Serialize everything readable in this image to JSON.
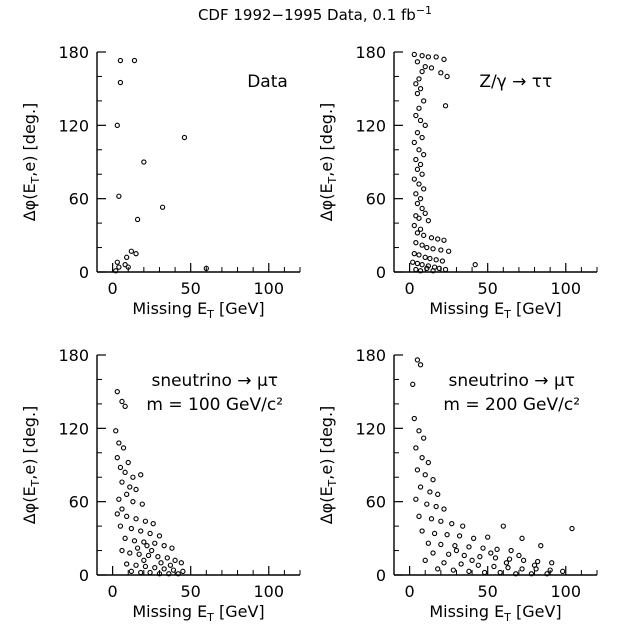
{
  "figure": {
    "title": "CDF 1992−1995 Data, 0.1 fb",
    "title_superscript": "−1"
  },
  "chart_data": [
    {
      "type": "scatter",
      "annotation": [
        "Data"
      ],
      "xlabel": "Missing E",
      "xlabel_sub": "T",
      "xlabel_unit": " [GeV]",
      "ylabel": "Δφ(E",
      "ylabel_sub": "T",
      "ylabel_end": ",e) [deg.]",
      "xlim": [
        -10,
        120
      ],
      "ylim": [
        0,
        180
      ],
      "xticks": [
        0,
        50,
        100
      ],
      "yticks": [
        0,
        60,
        120,
        180
      ],
      "marker_color": "#000000",
      "points": [
        [
          5,
          173
        ],
        [
          14,
          173
        ],
        [
          5,
          155
        ],
        [
          3,
          120
        ],
        [
          46,
          110
        ],
        [
          20,
          90
        ],
        [
          4,
          62
        ],
        [
          32,
          53
        ],
        [
          16,
          43
        ],
        [
          12,
          17
        ],
        [
          15,
          15
        ],
        [
          9,
          12
        ],
        [
          3,
          8
        ],
        [
          4,
          4
        ],
        [
          8,
          6
        ],
        [
          10,
          4
        ],
        [
          2,
          1
        ],
        [
          60,
          3
        ]
      ]
    },
    {
      "type": "scatter",
      "annotation": [
        "Z/γ → ττ"
      ],
      "xlabel": "Missing E",
      "xlabel_sub": "T",
      "xlabel_unit": " [GeV]",
      "ylabel": "Δφ(E",
      "ylabel_sub": "T",
      "ylabel_end": ",e) [deg.]",
      "xlim": [
        -10,
        120
      ],
      "ylim": [
        0,
        180
      ],
      "xticks": [
        0,
        50,
        100
      ],
      "yticks": [
        0,
        60,
        120,
        180
      ],
      "marker_color": "#000000",
      "points": [
        [
          3,
          178
        ],
        [
          8,
          177
        ],
        [
          12,
          176
        ],
        [
          17,
          176
        ],
        [
          22,
          174
        ],
        [
          5,
          172
        ],
        [
          10,
          168
        ],
        [
          14,
          167
        ],
        [
          20,
          163
        ],
        [
          24,
          160
        ],
        [
          8,
          164
        ],
        [
          6,
          158
        ],
        [
          4,
          154
        ],
        [
          7,
          150
        ],
        [
          5,
          146
        ],
        [
          9,
          140
        ],
        [
          23,
          136
        ],
        [
          6,
          134
        ],
        [
          4,
          128
        ],
        [
          7,
          124
        ],
        [
          10,
          120
        ],
        [
          5,
          114
        ],
        [
          8,
          110
        ],
        [
          3,
          106
        ],
        [
          6,
          100
        ],
        [
          9,
          96
        ],
        [
          4,
          92
        ],
        [
          7,
          88
        ],
        [
          5,
          84
        ],
        [
          8,
          80
        ],
        [
          3,
          76
        ],
        [
          6,
          72
        ],
        [
          9,
          68
        ],
        [
          4,
          64
        ],
        [
          7,
          60
        ],
        [
          5,
          56
        ],
        [
          8,
          52
        ],
        [
          10,
          48
        ],
        [
          4,
          46
        ],
        [
          6,
          44
        ],
        [
          12,
          42
        ],
        [
          3,
          38
        ],
        [
          7,
          35
        ],
        [
          5,
          32
        ],
        [
          9,
          30
        ],
        [
          14,
          28
        ],
        [
          18,
          27
        ],
        [
          22,
          26
        ],
        [
          4,
          24
        ],
        [
          8,
          22
        ],
        [
          11,
          20
        ],
        [
          15,
          19
        ],
        [
          20,
          18
        ],
        [
          25,
          17
        ],
        [
          3,
          15
        ],
        [
          6,
          14
        ],
        [
          10,
          12
        ],
        [
          13,
          11
        ],
        [
          17,
          10
        ],
        [
          21,
          9
        ],
        [
          2,
          8
        ],
        [
          5,
          7
        ],
        [
          8,
          6
        ],
        [
          12,
          5
        ],
        [
          16,
          4
        ],
        [
          19,
          3
        ],
        [
          23,
          2
        ],
        [
          4,
          2
        ],
        [
          7,
          1
        ],
        [
          11,
          3
        ],
        [
          15,
          1
        ],
        [
          42,
          6
        ]
      ]
    },
    {
      "type": "scatter",
      "annotation": [
        "sneutrino → μτ",
        "m = 100 GeV/c²"
      ],
      "xlabel": "Missing E",
      "xlabel_sub": "T",
      "xlabel_unit": " [GeV]",
      "ylabel": "Δφ(E",
      "ylabel_sub": "T",
      "ylabel_end": ",e) [deg.]",
      "xlim": [
        -10,
        120
      ],
      "ylim": [
        0,
        180
      ],
      "xticks": [
        0,
        50,
        100
      ],
      "yticks": [
        0,
        60,
        120,
        180
      ],
      "marker_color": "#000000",
      "points": [
        [
          3,
          150
        ],
        [
          6,
          142
        ],
        [
          8,
          138
        ],
        [
          2,
          118
        ],
        [
          4,
          108
        ],
        [
          7,
          104
        ],
        [
          3,
          96
        ],
        [
          10,
          92
        ],
        [
          5,
          88
        ],
        [
          8,
          84
        ],
        [
          13,
          80
        ],
        [
          18,
          82
        ],
        [
          6,
          76
        ],
        [
          11,
          72
        ],
        [
          15,
          70
        ],
        [
          9,
          66
        ],
        [
          4,
          62
        ],
        [
          13,
          60
        ],
        [
          19,
          58
        ],
        [
          6,
          54
        ],
        [
          3,
          50
        ],
        [
          9,
          48
        ],
        [
          15,
          46
        ],
        [
          21,
          44
        ],
        [
          26,
          42
        ],
        [
          5,
          40
        ],
        [
          12,
          38
        ],
        [
          18,
          36
        ],
        [
          24,
          34
        ],
        [
          30,
          32
        ],
        [
          8,
          30
        ],
        [
          14,
          28
        ],
        [
          20,
          27
        ],
        [
          27,
          26
        ],
        [
          33,
          24
        ],
        [
          38,
          22
        ],
        [
          6,
          20
        ],
        [
          11,
          18
        ],
        [
          17,
          17
        ],
        [
          23,
          16
        ],
        [
          29,
          15
        ],
        [
          35,
          14
        ],
        [
          40,
          12
        ],
        [
          44,
          10
        ],
        [
          9,
          9
        ],
        [
          15,
          8
        ],
        [
          21,
          7
        ],
        [
          27,
          6
        ],
        [
          33,
          5
        ],
        [
          39,
          4
        ],
        [
          45,
          3
        ],
        [
          12,
          3
        ],
        [
          18,
          2
        ],
        [
          24,
          2
        ],
        [
          30,
          1
        ],
        [
          36,
          1
        ],
        [
          42,
          1
        ],
        [
          20,
          12
        ],
        [
          25,
          20
        ],
        [
          31,
          10
        ],
        [
          37,
          8
        ],
        [
          16,
          22
        ],
        [
          22,
          24
        ]
      ]
    },
    {
      "type": "scatter",
      "annotation": [
        "sneutrino → μτ",
        "m = 200 GeV/c²"
      ],
      "xlabel": "Missing E",
      "xlabel_sub": "T",
      "xlabel_unit": " [GeV]",
      "ylabel": "Δφ(E",
      "ylabel_sub": "T",
      "ylabel_end": ",e) [deg.]",
      "xlim": [
        -10,
        120
      ],
      "ylim": [
        0,
        180
      ],
      "xticks": [
        0,
        50,
        100
      ],
      "yticks": [
        0,
        60,
        120,
        180
      ],
      "marker_color": "#000000",
      "points": [
        [
          5,
          176
        ],
        [
          7,
          172
        ],
        [
          2,
          156
        ],
        [
          3,
          128
        ],
        [
          6,
          118
        ],
        [
          9,
          112
        ],
        [
          4,
          104
        ],
        [
          8,
          96
        ],
        [
          12,
          92
        ],
        [
          5,
          86
        ],
        [
          10,
          82
        ],
        [
          15,
          78
        ],
        [
          7,
          72
        ],
        [
          13,
          68
        ],
        [
          18,
          66
        ],
        [
          4,
          62
        ],
        [
          11,
          58
        ],
        [
          17,
          56
        ],
        [
          22,
          54
        ],
        [
          6,
          48
        ],
        [
          14,
          46
        ],
        [
          20,
          44
        ],
        [
          27,
          42
        ],
        [
          34,
          40
        ],
        [
          60,
          40
        ],
        [
          104,
          38
        ],
        [
          8,
          36
        ],
        [
          16,
          34
        ],
        [
          24,
          33
        ],
        [
          32,
          32
        ],
        [
          41,
          30
        ],
        [
          50,
          31
        ],
        [
          72,
          30
        ],
        [
          12,
          26
        ],
        [
          20,
          25
        ],
        [
          29,
          24
        ],
        [
          38,
          23
        ],
        [
          47,
          22
        ],
        [
          56,
          21
        ],
        [
          65,
          20
        ],
        [
          84,
          24
        ],
        [
          15,
          18
        ],
        [
          25,
          17
        ],
        [
          35,
          16
        ],
        [
          45,
          15
        ],
        [
          55,
          14
        ],
        [
          64,
          13
        ],
        [
          73,
          12
        ],
        [
          82,
          11
        ],
        [
          91,
          10
        ],
        [
          10,
          12
        ],
        [
          22,
          10
        ],
        [
          33,
          9
        ],
        [
          44,
          8
        ],
        [
          54,
          7
        ],
        [
          63,
          6
        ],
        [
          72,
          5
        ],
        [
          81,
          5
        ],
        [
          90,
          4
        ],
        [
          98,
          3
        ],
        [
          18,
          5
        ],
        [
          28,
          4
        ],
        [
          38,
          3
        ],
        [
          48,
          2
        ],
        [
          58,
          2
        ],
        [
          68,
          1
        ],
        [
          78,
          1
        ],
        [
          88,
          1
        ],
        [
          30,
          20
        ],
        [
          40,
          12
        ],
        [
          52,
          18
        ],
        [
          62,
          10
        ],
        [
          70,
          16
        ],
        [
          80,
          8
        ]
      ]
    }
  ]
}
